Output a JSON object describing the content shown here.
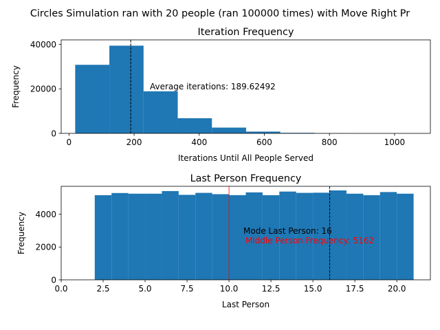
{
  "figure": {
    "suptitle": "Circles Simulation ran with 20 people (ran 100000 times) with Move Right Pr"
  },
  "chart_data": [
    {
      "type": "bar",
      "title": "Iteration Frequency",
      "xlabel": "Iterations Until All People Served",
      "ylabel": "Frequency",
      "xlim": [
        -24,
        1110
      ],
      "ylim": [
        0,
        42000
      ],
      "xticks": [
        0,
        200,
        400,
        600,
        800,
        1000
      ],
      "yticks": [
        0,
        20000,
        40000
      ],
      "bars": [
        {
          "x0": 19,
          "x1": 124,
          "value": 30800
        },
        {
          "x0": 124,
          "x1": 229,
          "value": 39400
        },
        {
          "x0": 229,
          "x1": 334,
          "value": 18900
        },
        {
          "x0": 334,
          "x1": 439,
          "value": 6800
        },
        {
          "x0": 439,
          "x1": 544,
          "value": 2600
        },
        {
          "x0": 544,
          "x1": 649,
          "value": 800
        },
        {
          "x0": 649,
          "x1": 754,
          "value": 250
        },
        {
          "x0": 754,
          "x1": 859,
          "value": 60
        },
        {
          "x0": 859,
          "x1": 964,
          "value": 15
        },
        {
          "x0": 964,
          "x1": 1069,
          "value": 5
        }
      ],
      "bar_color": "#1f77b4",
      "vlines": [
        {
          "x": 189.62492,
          "style": "dashed",
          "color": "#000000"
        }
      ],
      "annotations": [
        {
          "text": "Average iterations: 189.62492",
          "color": "#000000"
        }
      ]
    },
    {
      "type": "bar",
      "title": "Last Person Frequency",
      "xlabel": "Last Person",
      "ylabel": "Frequency",
      "xlim": [
        0,
        22
      ],
      "ylim": [
        0,
        5700
      ],
      "xticks": [
        0.0,
        2.5,
        5.0,
        7.5,
        10.0,
        12.5,
        15.0,
        17.5,
        20.0
      ],
      "xtick_labels": [
        "0.0",
        "2.5",
        "5.0",
        "7.5",
        "10.0",
        "12.5",
        "15.0",
        "17.5",
        "20.0"
      ],
      "yticks": [
        0,
        2000,
        4000
      ],
      "bars": [
        {
          "x0": 2,
          "x1": 3,
          "value": 5160
        },
        {
          "x0": 3,
          "x1": 4,
          "value": 5290
        },
        {
          "x0": 4,
          "x1": 5,
          "value": 5250
        },
        {
          "x0": 5,
          "x1": 6,
          "value": 5250
        },
        {
          "x0": 6,
          "x1": 7,
          "value": 5410
        },
        {
          "x0": 7,
          "x1": 8,
          "value": 5180
        },
        {
          "x0": 8,
          "x1": 9,
          "value": 5300
        },
        {
          "x0": 9,
          "x1": 10,
          "value": 5220
        },
        {
          "x0": 10,
          "x1": 11,
          "value": 5162
        },
        {
          "x0": 11,
          "x1": 12,
          "value": 5330
        },
        {
          "x0": 12,
          "x1": 13,
          "value": 5160
        },
        {
          "x0": 13,
          "x1": 14,
          "value": 5380
        },
        {
          "x0": 14,
          "x1": 15,
          "value": 5300
        },
        {
          "x0": 15,
          "x1": 16,
          "value": 5310
        },
        {
          "x0": 16,
          "x1": 17,
          "value": 5450
        },
        {
          "x0": 17,
          "x1": 18,
          "value": 5250
        },
        {
          "x0": 18,
          "x1": 19,
          "value": 5160
        },
        {
          "x0": 19,
          "x1": 20,
          "value": 5350
        },
        {
          "x0": 20,
          "x1": 21,
          "value": 5250
        }
      ],
      "bar_color": "#1f77b4",
      "vlines": [
        {
          "x": 16,
          "style": "dashed",
          "color": "#000000"
        },
        {
          "x": 10,
          "style": "solid",
          "color": "#ff0000"
        }
      ],
      "annotations": [
        {
          "text": "Mode Last Person: 16",
          "color": "#000000"
        },
        {
          "text": "Middle Person Frequency: 5162",
          "color": "#ff0000"
        }
      ]
    }
  ]
}
